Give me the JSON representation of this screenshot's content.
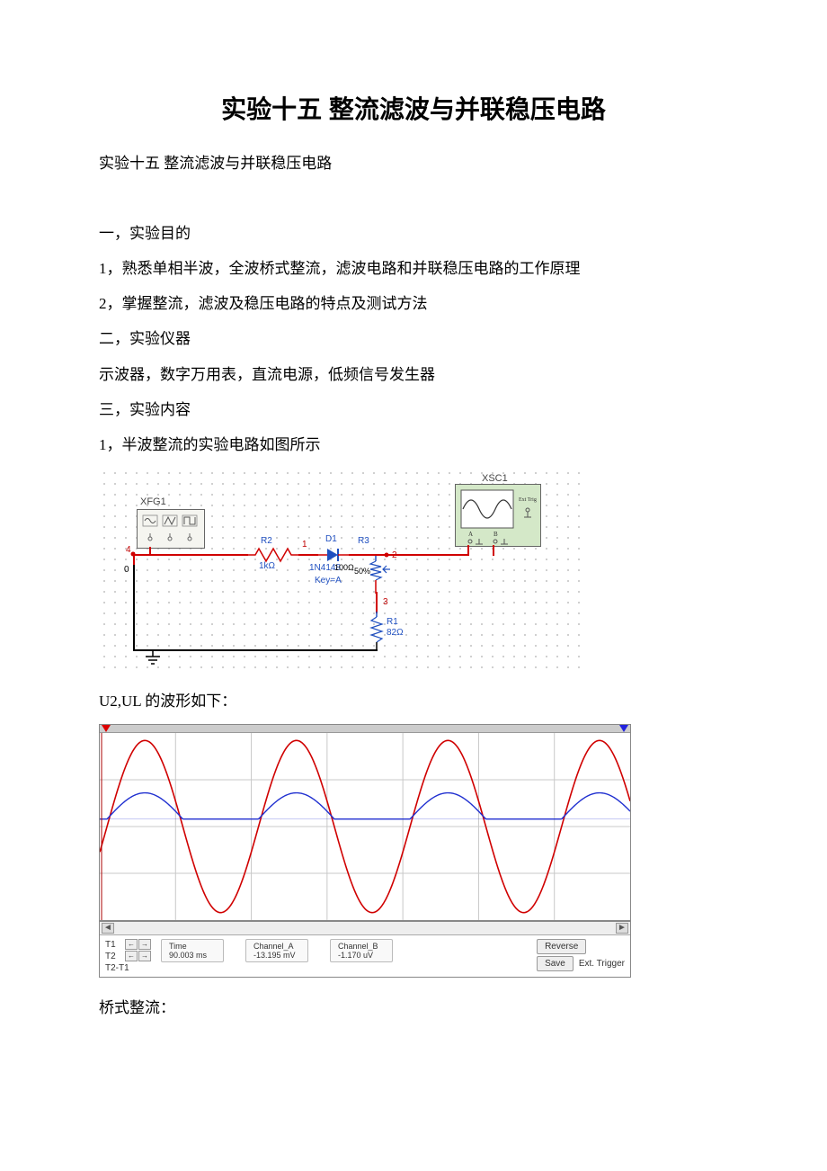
{
  "title": "实验十五 整流滤波与并联稳压电路",
  "subtitle": "实验十五  整流滤波与并联稳压电路",
  "section1_heading": "一，实验目的",
  "section1_item1": "1，熟悉单相半波，全波桥式整流，滤波电路和并联稳压电路的工作原理",
  "section1_item2": "2，掌握整流，滤波及稳压电路的特点及测试方法",
  "section2_heading": "二，实验仪器",
  "section2_text": "示波器，数字万用表，直流电源，低频信号发生器",
  "section3_heading": "三，实验内容",
  "section3_item1": "1，半波整流的实验电路如图所示",
  "waveform_caption": "U2,UL 的波形如下：",
  "bridge_caption": "桥式整流：",
  "circuit": {
    "xfg_label": "XFG1",
    "xsc_label": "XSC1",
    "r2_name": "R2",
    "r2_val": "1kΩ",
    "d1_name": "D1",
    "d1_val": "1N4148",
    "r3_name": "R3",
    "r3_val": "100Ω",
    "r3_pct": "50%",
    "r3_key": "Key=A",
    "r1_name": "R1",
    "r1_val": "82Ω",
    "node0": "0",
    "node1": "1",
    "node2": "2",
    "node3": "3",
    "node4": "4",
    "ext_trig": "Ext Trig",
    "ab_a": "A",
    "ab_b": "B"
  },
  "scope": {
    "t1": "T1",
    "t2": "T2",
    "t2t1": "T2-T1",
    "time_hdr": "Time",
    "time_val": "90.003 ms",
    "cha_hdr": "Channel_A",
    "cha_val": "-13.195 mV",
    "chb_hdr": "Channel_B",
    "chb_val": "-1.170 uV",
    "reverse": "Reverse",
    "save": "Save",
    "ext": "Ext. Trigger",
    "plot": {
      "red_color": "#d00000",
      "blue_color": "#2030d0",
      "grid_color": "#c8c8c8",
      "bg_color": "#ffffff",
      "grid_rows": 4,
      "grid_cols": 7,
      "red_cycles": 3.5,
      "red_amplitude": 0.92,
      "red_baseline": 0.5,
      "blue_amplitude": 0.14,
      "blue_baseline": 0.46
    }
  }
}
